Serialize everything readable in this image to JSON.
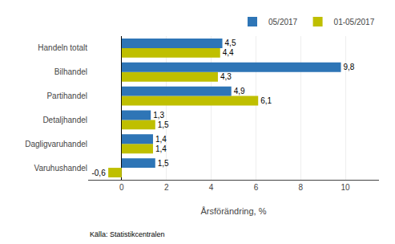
{
  "chart_data": {
    "type": "bar",
    "orientation": "horizontal",
    "categories": [
      "Varuhushandel",
      "Dagligvaruhandel",
      "Detaljhandel",
      "Partihandel",
      "Bilhandel",
      "Handeln totalt"
    ],
    "series": [
      {
        "name": "05/2017",
        "color": "#2E75B6",
        "values": [
          1.5,
          1.4,
          1.3,
          4.9,
          9.8,
          4.5
        ],
        "value_labels": [
          "1,5",
          "1,4",
          "1,3",
          "4,9",
          "9,8",
          "4,5"
        ]
      },
      {
        "name": "01-05/2017",
        "color": "#BFBF00",
        "values": [
          -0.6,
          1.4,
          1.5,
          6.1,
          4.3,
          4.4
        ],
        "value_labels": [
          "-0,6",
          "1,4",
          "1,5",
          "6,1",
          "4,3",
          "4,4"
        ]
      }
    ],
    "data_labels": true,
    "xlabel": "Årsförändring, %",
    "annotations": [
      "Källa: Statistikcentralen"
    ],
    "xlim": [
      -1.5,
      11.5
    ],
    "xticks": [
      0,
      2,
      4,
      6,
      8,
      10
    ],
    "grid": true,
    "legend": "upper right"
  }
}
